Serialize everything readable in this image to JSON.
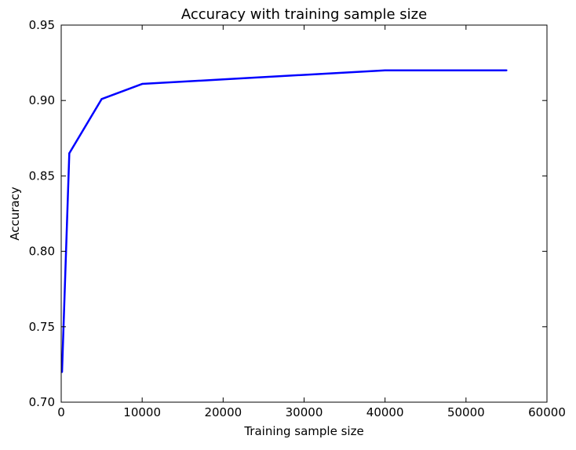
{
  "chart_data": {
    "type": "line",
    "title": "Accuracy with training sample size",
    "xlabel": "Training sample size",
    "ylabel": "Accuracy",
    "xlim": [
      0,
      60000
    ],
    "ylim": [
      0.7,
      0.95
    ],
    "xticks": [
      "0",
      "10000",
      "20000",
      "30000",
      "40000",
      "50000",
      "60000"
    ],
    "yticks": [
      "0.70",
      "0.75",
      "0.80",
      "0.85",
      "0.90",
      "0.95"
    ],
    "grid": false,
    "legend": "none",
    "series": [
      {
        "color": "#0000ff",
        "x": [
          100,
          1000,
          5000,
          10000,
          20000,
          40000,
          55000
        ],
        "y": [
          0.72,
          0.865,
          0.901,
          0.911,
          0.914,
          0.92,
          0.92
        ]
      }
    ]
  }
}
